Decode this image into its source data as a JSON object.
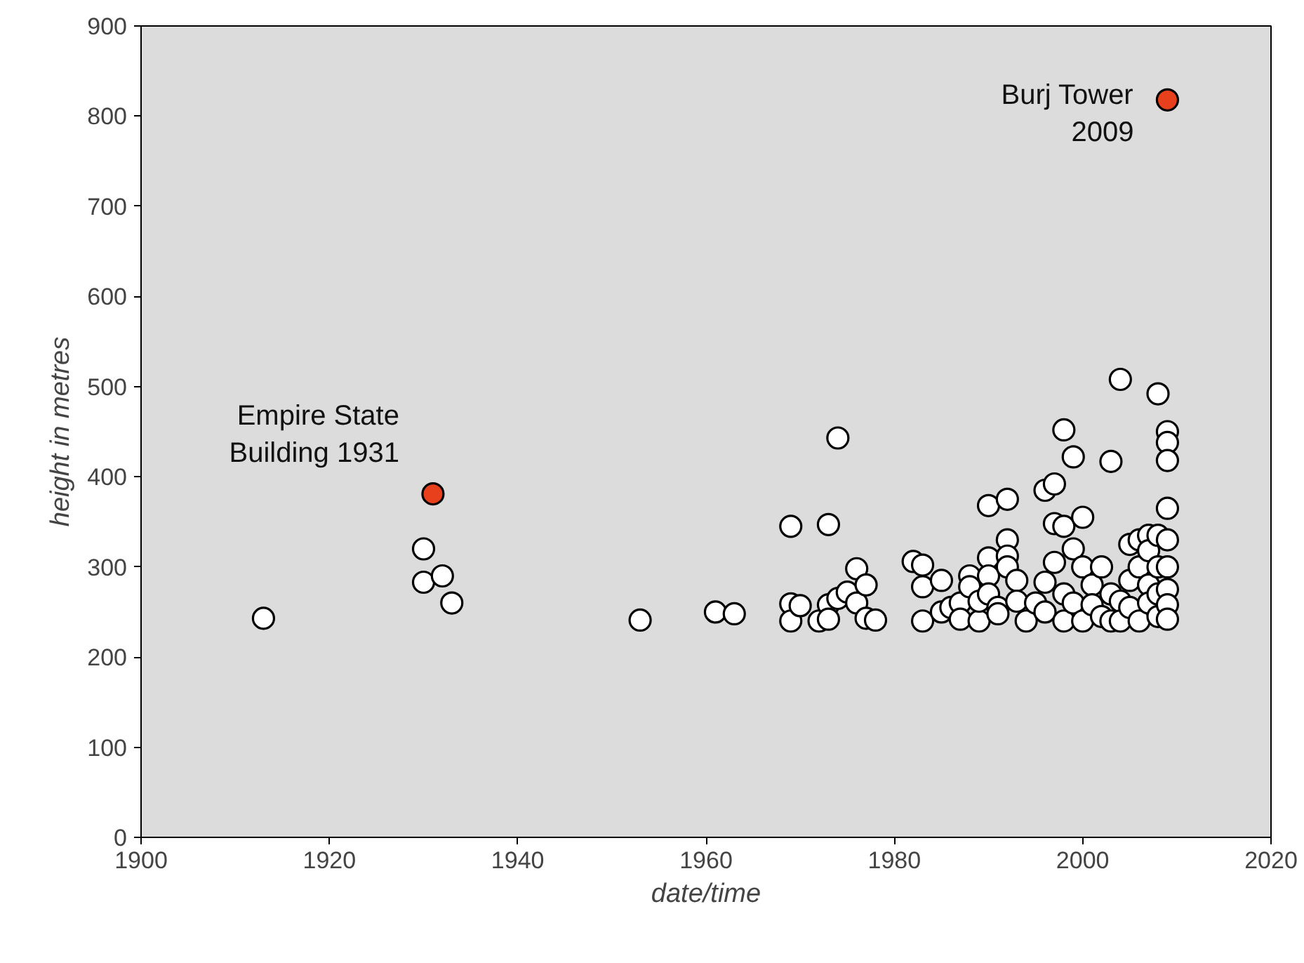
{
  "chart_data": {
    "type": "scatter",
    "xlabel": "date/time",
    "ylabel": "height in metres",
    "xlim": [
      1900,
      2020
    ],
    "xticks": [
      1900,
      1920,
      1940,
      1960,
      1980,
      2000,
      2020
    ],
    "ylim": [
      0,
      900
    ],
    "yticks": [
      0,
      100,
      200,
      300,
      400,
      500,
      600,
      700,
      800,
      900
    ],
    "grid": false,
    "marker": "circle",
    "series": [
      {
        "color": "#ffffff",
        "x": [
          1913,
          1930,
          1930,
          1932,
          1933,
          1953,
          1961,
          1963,
          1969,
          1969,
          1969,
          1970,
          1972,
          1973,
          1973,
          1974,
          1973,
          1974,
          1975,
          1976,
          1976,
          1977,
          1977,
          1978,
          1982,
          1983,
          1983,
          1983,
          1985,
          1985,
          1986,
          1987,
          1987,
          1988,
          1988,
          1989,
          1989,
          1990,
          1990,
          1990,
          1990,
          1991,
          1991,
          1992,
          1992,
          1992,
          1992,
          1993,
          1993,
          1994,
          1995,
          1996,
          1996,
          1996,
          1997,
          1997,
          1997,
          1998,
          1998,
          1998,
          1998,
          1999,
          1999,
          1999,
          2000,
          2000,
          2000,
          2001,
          2001,
          2002,
          2002,
          2003,
          2003,
          2003,
          2004,
          2004,
          2004,
          2005,
          2005,
          2005,
          2006,
          2006,
          2006,
          2007,
          2007,
          2007,
          2007,
          2008,
          2008,
          2008,
          2008,
          2008,
          2009,
          2009,
          2009,
          2009,
          2009,
          2009,
          2009,
          2009,
          2009
        ],
        "values": [
          243,
          320,
          283,
          290,
          260,
          241,
          250,
          248,
          345,
          259,
          240,
          257,
          240,
          347,
          258,
          443,
          242,
          265,
          272,
          298,
          260,
          280,
          243,
          241,
          306,
          302,
          240,
          278,
          285,
          250,
          255,
          260,
          242,
          290,
          278,
          240,
          262,
          368,
          310,
          290,
          270,
          255,
          248,
          375,
          330,
          312,
          300,
          285,
          262,
          240,
          260,
          385,
          283,
          250,
          392,
          348,
          305,
          452,
          345,
          240,
          270,
          422,
          320,
          260,
          355,
          300,
          240,
          280,
          258,
          300,
          245,
          417,
          270,
          240,
          508,
          262,
          240,
          325,
          285,
          255,
          330,
          300,
          240,
          335,
          318,
          280,
          260,
          492,
          335,
          300,
          270,
          245,
          450,
          438,
          418,
          365,
          330,
          300,
          275,
          258,
          242
        ]
      },
      {
        "color": "#e8401c",
        "x": [
          1931,
          2009
        ],
        "values": [
          381,
          818
        ]
      }
    ],
    "annotations": [
      {
        "text": "Empire State\nBuilding 1931",
        "x": 1931,
        "y": 381
      },
      {
        "text": "Burj Tower\n2009",
        "x": 2009,
        "y": 818
      }
    ]
  }
}
